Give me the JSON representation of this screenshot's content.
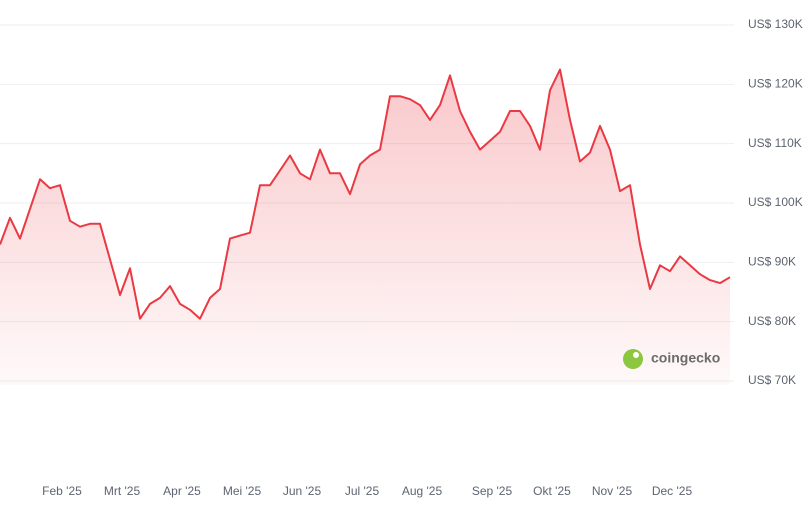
{
  "chart_data": {
    "type": "line",
    "x": [
      null,
      null,
      null,
      null,
      null,
      null,
      "Feb '25",
      null,
      null,
      null,
      null,
      null,
      "Mrt '25",
      null,
      null,
      null,
      null,
      null,
      "Apr '25",
      null,
      null,
      null,
      null,
      null,
      "Mei '25",
      null,
      null,
      null,
      null,
      null,
      "Jun '25",
      null,
      null,
      null,
      null,
      null,
      "Jul '25",
      null,
      null,
      null,
      null,
      null,
      "Aug '25",
      null,
      null,
      null,
      null,
      null,
      null,
      "Sep '25",
      null,
      null,
      null,
      null,
      null,
      "Okt '25",
      null,
      null,
      null,
      null,
      null,
      "Nov '25",
      null,
      null,
      null,
      null,
      null,
      "Dec '25",
      null,
      null,
      null,
      null,
      null,
      null
    ],
    "series": [
      {
        "color": "#ea3943",
        "values": [
          93000,
          97500,
          94000,
          99000,
          104000,
          102500,
          103000,
          97000,
          96000,
          96500,
          96500,
          90500,
          84500,
          89000,
          80500,
          83000,
          84000,
          86000,
          83000,
          82000,
          80500,
          84000,
          85500,
          94000,
          94500,
          95000,
          103000,
          103000,
          105500,
          108000,
          105000,
          104000,
          109000,
          105000,
          105000,
          101500,
          106500,
          108000,
          109000,
          118000,
          118000,
          117500,
          116500,
          114000,
          116500,
          121500,
          115500,
          112000,
          109000,
          110500,
          112000,
          115500,
          115500,
          113000,
          109000,
          119000,
          122500,
          114000,
          107000,
          108500,
          113000,
          109000,
          102000,
          103000,
          93000,
          85500,
          89500,
          88500,
          91000,
          89500,
          88000,
          87000,
          86500,
          87500
        ]
      }
    ],
    "ylim": [
      70000,
      130000
    ],
    "yticks": [
      {
        "value": 70000,
        "label": "US$ 70K"
      },
      {
        "value": 80000,
        "label": "US$ 80K"
      },
      {
        "value": 90000,
        "label": "US$ 90K"
      },
      {
        "value": 100000,
        "label": "US$ 100K"
      },
      {
        "value": 110000,
        "label": "US$ 110K"
      },
      {
        "value": 120000,
        "label": "US$ 120K"
      },
      {
        "value": 130000,
        "label": "US$ 130K"
      }
    ],
    "grid": true,
    "watermark": "coingecko"
  }
}
